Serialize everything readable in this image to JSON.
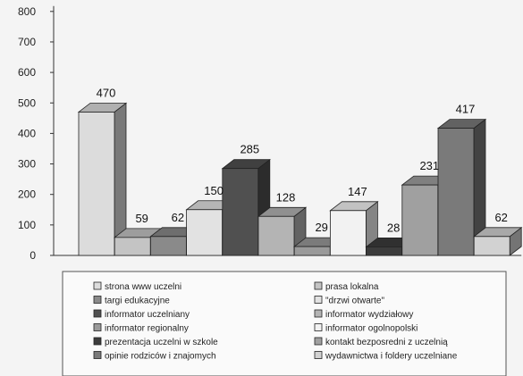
{
  "chart_data": {
    "type": "bar",
    "title": "",
    "xlabel": "",
    "ylabel": "",
    "ylim": [
      0,
      800
    ],
    "yticks": [
      0,
      100,
      200,
      300,
      400,
      500,
      600,
      700,
      800
    ],
    "grid": false,
    "legend_position": "bottom",
    "series": [
      {
        "name": "strona www uczelni",
        "value": 470,
        "color": "#dcdcdc"
      },
      {
        "name": "prasa lokalna",
        "value": 59,
        "color": "#c4c4c4"
      },
      {
        "name": "targi edukacyjne",
        "value": 62,
        "color": "#8a8a8a"
      },
      {
        "name": "\"drzwi otwarte\"",
        "value": 150,
        "color": "#e2e2e2"
      },
      {
        "name": "informator uczelniany",
        "value": 285,
        "color": "#505050"
      },
      {
        "name": "informator wydziałowy",
        "value": 128,
        "color": "#b4b4b4"
      },
      {
        "name": "informator regionalny",
        "value": 29,
        "color": "#9a9a9a"
      },
      {
        "name": "informator ogolnopolski",
        "value": 147,
        "color": "#f2f2f2"
      },
      {
        "name": "prezentacja uczelni w szkole",
        "value": 28,
        "color": "#3c3c3c"
      },
      {
        "name": "kontakt bezposredni z uczelnią",
        "value": 231,
        "color": "#a0a0a0"
      },
      {
        "name": "opinie rodziców i znajomych",
        "value": 417,
        "color": "#7a7a7a"
      },
      {
        "name": "wydawnictwa i foldery uczelniane",
        "value": 62,
        "color": "#d2d2d2"
      }
    ]
  }
}
